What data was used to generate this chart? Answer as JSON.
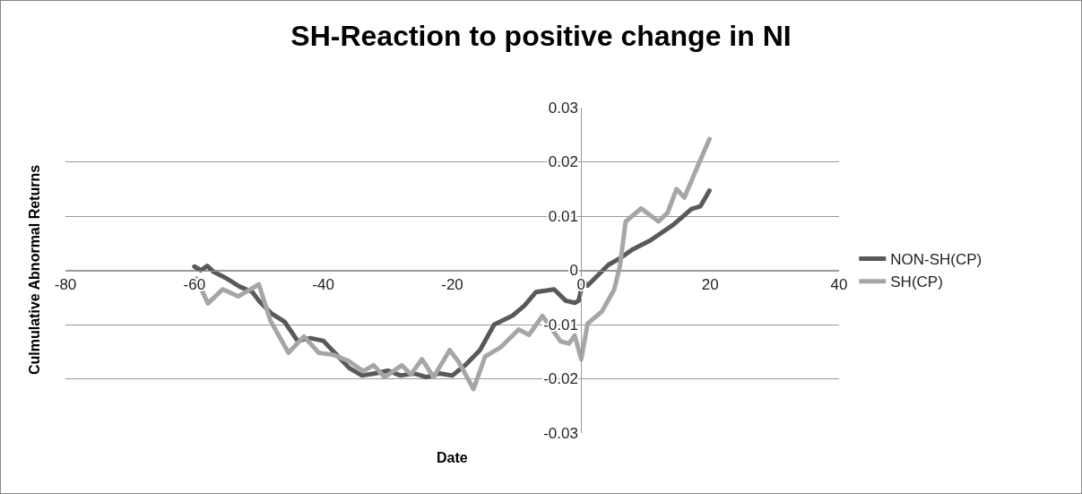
{
  "chart_data": {
    "type": "line",
    "title": "SH-Reaction to positive change in NI",
    "xlabel": "Date",
    "ylabel": "Culmulative Abnormal Returns",
    "xlim": [
      -80,
      40
    ],
    "xticks": [
      -80,
      -60,
      -40,
      -20,
      0,
      20,
      40
    ],
    "ylim": [
      -0.03,
      0.03
    ],
    "yticks": [
      -0.03,
      -0.02,
      -0.01,
      0,
      0.01,
      0.02,
      0.03
    ],
    "grid": "y",
    "legend": "right",
    "marker": "none",
    "line_style": "solid",
    "series": [
      {
        "name": "NON-SH(CP)",
        "color": "#595959",
        "x": [
          -60,
          -59,
          -58,
          -57,
          -55,
          -53,
          -51,
          -50,
          -48,
          -46,
          -44,
          -42,
          -40,
          -38,
          -36,
          -34,
          -32,
          -30,
          -28,
          -26,
          -24,
          -22,
          -20,
          -18,
          -15.7,
          -13.5,
          -10.7,
          -8.8,
          -7,
          -4.2,
          -2.4,
          -1,
          -0.4,
          0.3,
          1,
          4.2,
          6,
          7.9,
          10.7,
          14.3,
          17.1,
          18.5,
          19.9
        ],
        "values": [
          0.0007,
          0,
          0.0008,
          -0.0003,
          -0.0015,
          -0.003,
          -0.004,
          -0.0056,
          -0.008,
          -0.0095,
          -0.013,
          -0.0125,
          -0.013,
          -0.0155,
          -0.018,
          -0.0194,
          -0.019,
          -0.0185,
          -0.0194,
          -0.019,
          -0.0197,
          -0.019,
          -0.0194,
          -0.0175,
          -0.0147,
          -0.01,
          -0.0084,
          -0.0065,
          -0.004,
          -0.0035,
          -0.0056,
          -0.006,
          -0.0056,
          -0.002,
          -0.0028,
          0.001,
          0.0022,
          0.0038,
          0.0055,
          0.0084,
          0.0113,
          0.0118,
          0.0147
        ]
      },
      {
        "name": "SH(CP)",
        "color": "#a6a6a6",
        "x": [
          -59.7,
          -57.9,
          -55.6,
          -53.2,
          -50,
          -48.2,
          -45.4,
          -43,
          -40.7,
          -38.4,
          -36.1,
          -33.8,
          -32.2,
          -30.5,
          -27.8,
          -26.4,
          -24.7,
          -22.9,
          -20.4,
          -19,
          -16.7,
          -14.9,
          -12.5,
          -9.7,
          -8.1,
          -6,
          -3.2,
          -1.9,
          -1,
          0,
          1,
          3.2,
          5.1,
          6,
          6.9,
          9.3,
          12,
          13.4,
          14.8,
          16,
          17.6,
          19.9
        ],
        "values": [
          -0.0015,
          -0.0061,
          -0.0035,
          -0.0048,
          -0.0026,
          -0.0093,
          -0.0152,
          -0.0122,
          -0.0152,
          -0.0156,
          -0.0167,
          -0.0186,
          -0.0175,
          -0.0197,
          -0.0175,
          -0.0192,
          -0.0164,
          -0.0197,
          -0.0147,
          -0.0169,
          -0.0219,
          -0.0159,
          -0.0142,
          -0.0109,
          -0.0119,
          -0.0084,
          -0.0131,
          -0.0135,
          -0.012,
          -0.0164,
          -0.0098,
          -0.0076,
          -0.0036,
          0.0007,
          0.009,
          0.0114,
          0.009,
          0.0106,
          0.015,
          0.0134,
          0.0179,
          0.0242
        ]
      }
    ]
  }
}
